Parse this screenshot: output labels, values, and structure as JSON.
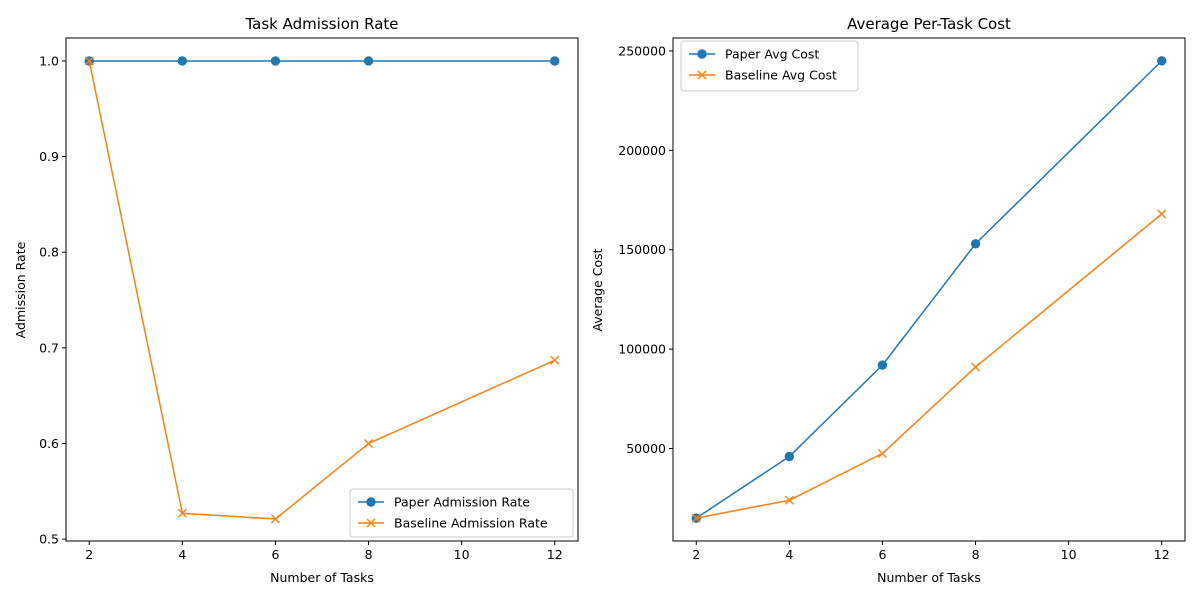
{
  "colors": {
    "series_blue": "#1f77b4",
    "series_orange": "#ff7f0e",
    "axis": "#000000",
    "legend_border": "#cccccc"
  },
  "chart_data": [
    {
      "type": "line",
      "title": "Task Admission Rate",
      "xlabel": "Number of Tasks",
      "ylabel": "Admission Rate",
      "x": [
        2,
        4,
        6,
        8,
        12
      ],
      "xlim": [
        1.5,
        12.5
      ],
      "ylim": [
        0.498,
        1.024
      ],
      "xticks": [
        2,
        4,
        6,
        8,
        10,
        12
      ],
      "yticks": [
        0.5,
        0.6,
        0.7,
        0.8,
        0.9,
        1.0
      ],
      "ytick_labels": [
        "0.5",
        "0.6",
        "0.7",
        "0.8",
        "0.9",
        "1.0"
      ],
      "grid": false,
      "legend_position": "lower-right",
      "series": [
        {
          "name": "Paper Admission Rate",
          "values": [
            1.0,
            1.0,
            1.0,
            1.0,
            1.0
          ],
          "color": "#1f77b4",
          "marker": "circle-icon"
        },
        {
          "name": "Baseline Admission Rate",
          "values": [
            1.0,
            0.527,
            0.521,
            0.6,
            0.687
          ],
          "color": "#ff7f0e",
          "marker": "x-icon"
        }
      ]
    },
    {
      "type": "line",
      "title": "Average Per-Task Cost",
      "xlabel": "Number of Tasks",
      "ylabel": "Average Cost",
      "x": [
        2,
        4,
        6,
        8,
        12
      ],
      "xlim": [
        1.5,
        12.5
      ],
      "ylim": [
        3500,
        256500
      ],
      "xticks": [
        2,
        4,
        6,
        8,
        10,
        12
      ],
      "yticks": [
        50000,
        100000,
        150000,
        200000,
        250000
      ],
      "ytick_labels": [
        "50000",
        "100000",
        "150000",
        "200000",
        "250000"
      ],
      "grid": false,
      "legend_position": "upper-left",
      "series": [
        {
          "name": "Paper Avg Cost",
          "values": [
            15000,
            46000,
            92000,
            153000,
            245000
          ],
          "color": "#1f77b4",
          "marker": "circle-icon"
        },
        {
          "name": "Baseline Avg Cost",
          "values": [
            15000,
            24000,
            47500,
            91000,
            168000
          ],
          "color": "#ff7f0e",
          "marker": "x-icon"
        }
      ]
    }
  ]
}
